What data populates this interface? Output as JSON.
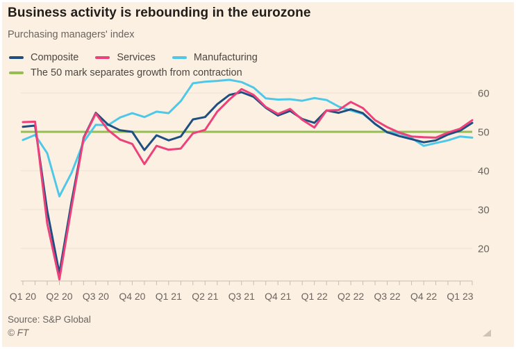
{
  "header": {
    "title": "Business activity is rebounding in the eurozone",
    "subtitle": "Purchasing managers' index"
  },
  "legend": {
    "items": [
      {
        "label": "Composite",
        "color": "#1e4f80"
      },
      {
        "label": "Services",
        "color": "#ec417a"
      },
      {
        "label": "Manufacturing",
        "color": "#4fc8e8"
      }
    ],
    "threshold_note": {
      "label": "The 50 mark separates growth from contraction",
      "color": "#95bd51"
    }
  },
  "colors": {
    "card_background": "#fcf0e3",
    "composite": "#1e4f80",
    "services": "#ec417a",
    "manufacturing": "#4fc8e8",
    "threshold_green": "#95bd51"
  },
  "chart_data": {
    "type": "line",
    "title": "Purchasing managers' index",
    "xlabel": "",
    "ylabel": "",
    "y_axis_side": "right",
    "grid": true,
    "legend_position": "top",
    "ylim": [
      10,
      65
    ],
    "y_ticks": [
      20,
      30,
      40,
      50,
      60
    ],
    "x_tick_labels": [
      "Q1 20",
      "Q2 20",
      "Q3 20",
      "Q4 20",
      "Q1 21",
      "Q2 21",
      "Q3 21",
      "Q4 21",
      "Q1 22",
      "Q2 22",
      "Q3 22",
      "Q4 22",
      "Q1 23"
    ],
    "x": [
      "Jan 2020",
      "Feb 2020",
      "Mar 2020",
      "Apr 2020",
      "May 2020",
      "Jun 2020",
      "Jul 2020",
      "Aug 2020",
      "Sep 2020",
      "Oct 2020",
      "Nov 2020",
      "Dec 2020",
      "Jan 2021",
      "Feb 2021",
      "Mar 2021",
      "Apr 2021",
      "May 2021",
      "Jun 2021",
      "Jul 2021",
      "Aug 2021",
      "Sep 2021",
      "Oct 2021",
      "Nov 2021",
      "Dec 2021",
      "Jan 2022",
      "Feb 2022",
      "Mar 2022",
      "Apr 2022",
      "May 2022",
      "Jun 2022",
      "Jul 2022",
      "Aug 2022",
      "Sep 2022",
      "Oct 2022",
      "Nov 2022",
      "Dec 2022",
      "Jan 2023",
      "Feb 2023"
    ],
    "threshold": {
      "value": 50,
      "label": "The 50 mark separates growth from contraction",
      "color": "#95bd51"
    },
    "series": [
      {
        "name": "Composite",
        "color": "#1e4f80",
        "values": [
          51.3,
          51.6,
          29.7,
          13.6,
          31.9,
          48.5,
          54.9,
          51.9,
          50.4,
          50.0,
          45.3,
          49.1,
          47.8,
          48.8,
          53.2,
          53.8,
          57.1,
          59.5,
          60.2,
          59.0,
          56.2,
          54.2,
          55.4,
          53.3,
          52.3,
          55.5,
          54.9,
          55.8,
          54.8,
          52.0,
          49.9,
          48.9,
          48.1,
          47.3,
          47.8,
          49.3,
          50.3,
          52.3
        ]
      },
      {
        "name": "Services",
        "color": "#ec417a",
        "values": [
          52.5,
          52.6,
          26.4,
          12.0,
          30.5,
          48.3,
          54.7,
          50.5,
          48.0,
          46.9,
          41.7,
          46.4,
          45.4,
          45.7,
          49.6,
          50.5,
          55.2,
          58.3,
          61.0,
          59.5,
          56.4,
          54.6,
          55.9,
          53.1,
          51.1,
          55.5,
          55.6,
          57.7,
          56.1,
          53.0,
          51.2,
          49.8,
          48.8,
          48.6,
          48.5,
          49.8,
          50.8,
          53.0
        ]
      },
      {
        "name": "Manufacturing",
        "color": "#4fc8e8",
        "values": [
          47.9,
          49.2,
          44.5,
          33.4,
          39.4,
          47.4,
          51.8,
          51.7,
          53.7,
          54.8,
          53.8,
          55.2,
          54.8,
          57.9,
          62.5,
          62.9,
          63.1,
          63.4,
          62.8,
          61.4,
          58.6,
          58.3,
          58.4,
          58.0,
          58.7,
          58.2,
          56.5,
          55.5,
          54.6,
          52.1,
          49.8,
          49.6,
          48.4,
          46.4,
          47.1,
          47.8,
          48.8,
          48.5
        ]
      }
    ]
  },
  "footer": {
    "source": "Source: S&P Global",
    "copyright": "© FT"
  }
}
